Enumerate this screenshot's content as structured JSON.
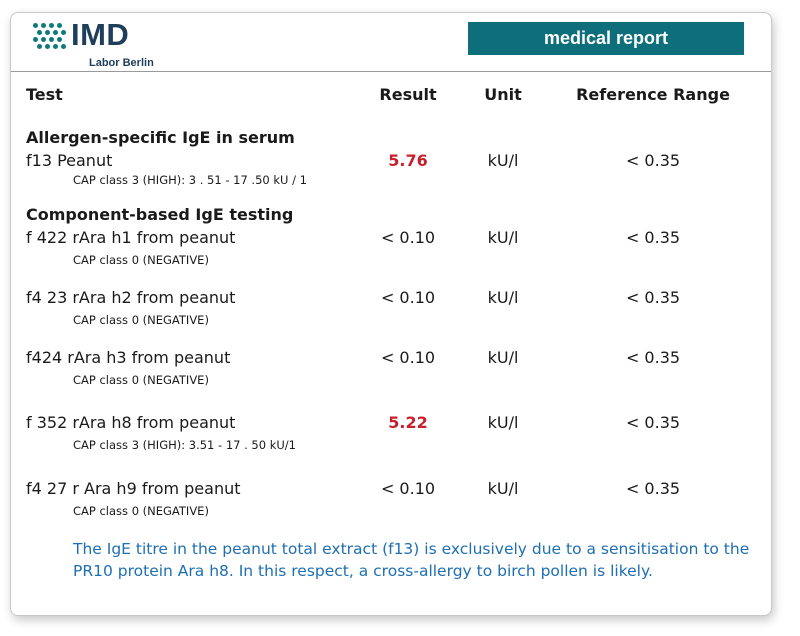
{
  "header": {
    "logo_text": "IMD",
    "logo_sub": "Labor Berlin",
    "banner": "medical report"
  },
  "columns": {
    "test": "Test",
    "result": "Result",
    "unit": "Unit",
    "reference": "Reference Range"
  },
  "sections": [
    {
      "title": "Allergen-specific IgE in serum",
      "rows": [
        {
          "test": "f13 Peanut",
          "cap": "CAP class 3 (HIGH): 3 . 51 - 17 .50 kU / 1",
          "result": "5.76",
          "unit": "kU/l",
          "reference": "< 0.35"
        }
      ]
    },
    {
      "title": "Component-based IgE testing",
      "rows": [
        {
          "test": "f 422 rAra h1 from peanut",
          "cap": "CAP class 0 (NEGATIVE)",
          "result": "< 0.10",
          "unit": "kU/l",
          "reference": "< 0.35"
        },
        {
          "test": "f4 23 rAra h2 from peanut",
          "cap": "CAP class 0 (NEGATIVE)",
          "result": "< 0.10",
          "unit": "kU/l",
          "reference": "< 0.35"
        },
        {
          "test": "f424 rAra h3 from peanut",
          "cap": "CAP class 0 (NEGATIVE)",
          "result": "< 0.10",
          "unit": "kU/l",
          "reference": "< 0.35"
        },
        {
          "test": "f 352 rAra h8 from peanut",
          "cap": "CAP class 3 (HIGH): 3.51 - 17 . 50 kU/1",
          "result": "5.22",
          "unit": "kU/l",
          "reference": "< 0.35"
        },
        {
          "test": "f4 27 r Ara h9 from peanut",
          "cap": "CAP class 0 (NEGATIVE)",
          "result": "< 0.10",
          "unit": "kU/l",
          "reference": "< 0.35"
        }
      ]
    }
  ],
  "note": "The IgE titre in the peanut total extract (f13) is exclusively due to a sensitisation to the PR10 protein Ara h8. In this respect, a cross-allergy to birch pollen is likely.",
  "colors": {
    "brand": "#0e6f7a",
    "high": "#c8202c",
    "note": "#1e6fb2"
  }
}
